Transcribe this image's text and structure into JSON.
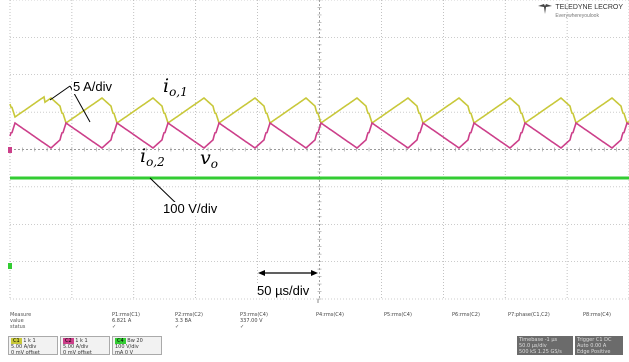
{
  "logo": {
    "brand": "TELEDYNE LECROY",
    "tagline": "Everywhereyoulook"
  },
  "annotations": {
    "current_scale": "5 A/div",
    "voltage_scale": "100 V/div",
    "time_scale": "50 µs/div"
  },
  "labels": {
    "io1_base": "i",
    "io1_sub": "o,1",
    "io2_base": "i",
    "io2_sub": "o,2",
    "vo_base": "v",
    "vo_sub": "o"
  },
  "colors": {
    "yellow_trace": "#c8c83a",
    "magenta_trace": "#cc3f8a",
    "green_trace": "#33cc33",
    "grid": "#9a9a9a"
  },
  "measure": {
    "row_labels": [
      "Measure",
      "value",
      "status"
    ],
    "columns": [
      {
        "name": "P1:rms(C1)",
        "value": "6.821 A",
        "status": "✓"
      },
      {
        "name": "P2:rms(C2)",
        "value": "3.3 BA",
        "status": "✓"
      },
      {
        "name": "P3:rms(C4)",
        "value": "337.00 V",
        "status": "✓"
      },
      {
        "name": "P4:rms(C4)",
        "value": "",
        "status": ""
      },
      {
        "name": "P5:rms(C4)",
        "value": "",
        "status": ""
      },
      {
        "name": "P6:rms(C2)",
        "value": "",
        "status": ""
      },
      {
        "name": "P7:phase(C1,C2)",
        "value": "",
        "status": ""
      },
      {
        "name": "P8:rms(C4)",
        "value": "",
        "status": ""
      }
    ]
  },
  "channels": [
    {
      "tag": "C1",
      "line1": "1 k  1",
      "line2": "5.00 A/div",
      "line3": "0 mV offset",
      "color": "#c8c83a"
    },
    {
      "tag": "C2",
      "line1": "1 k  1",
      "line2": "5.00 A/div",
      "line3": "0 mV offset",
      "color": "#cc3f8a"
    },
    {
      "tag": "C4",
      "line1": "Bw  20",
      "line2": "100 V/div",
      "line3": "mA  0 V",
      "color": "#33cc33"
    }
  ],
  "timebase": {
    "title": "Timebase",
    "v1": "-1 µs",
    "line2": "50.0 µs/div",
    "line3": "500 kS  1.25 GS/s"
  },
  "trigger": {
    "title": "Trigger",
    "v1": "C1 DC",
    "line2": "Auto  0.00 A",
    "line3": "Edge  Positive"
  }
}
